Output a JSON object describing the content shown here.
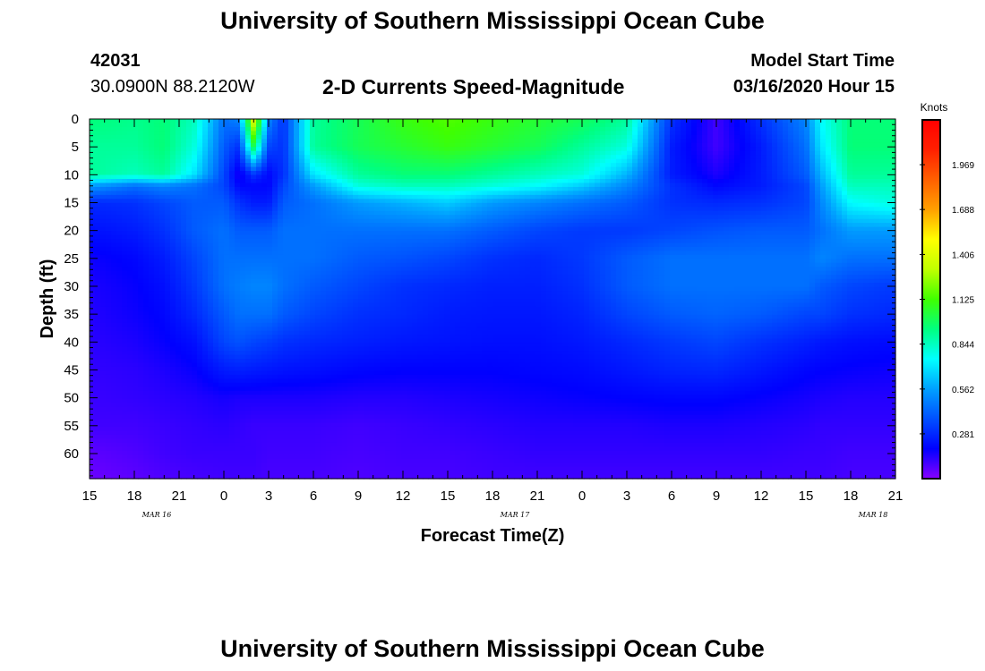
{
  "header": {
    "title_top": "University of Southern Mississippi Ocean Cube",
    "title_bottom": "University of Southern Mississippi Ocean Cube",
    "station_id": "42031",
    "location": "30.0900N 88.2120W",
    "subtitle": "2-D Currents Speed-Magnitude",
    "model_label": "Model Start Time",
    "model_time": "03/16/2020 Hour 15"
  },
  "chart_data": {
    "type": "heatmap",
    "title": "2-D Currents Speed-Magnitude",
    "xlabel": "Forecast Time(Z)",
    "ylabel": "Depth (ft)",
    "x_tick_labels": [
      "15",
      "18",
      "21",
      "0",
      "3",
      "6",
      "9",
      "12",
      "15",
      "18",
      "21",
      "0",
      "3",
      "6",
      "9",
      "12",
      "15",
      "18",
      "21"
    ],
    "x_date_labels": [
      {
        "label": "MAR 16",
        "x": 19.5
      },
      {
        "label": "MAR 17",
        "x": 43.5
      },
      {
        "label": "MAR 18",
        "x": 67.5
      }
    ],
    "xlim": [
      15,
      69
    ],
    "y_ticks": [
      0,
      5,
      10,
      15,
      20,
      25,
      30,
      35,
      40,
      45,
      50,
      55,
      60
    ],
    "ylim": [
      0,
      64.5
    ],
    "y_inverted": true,
    "colorbar": {
      "unit": "Knots",
      "range": [
        0,
        2.25
      ],
      "tick_values": [
        0.281,
        0.562,
        0.844,
        1.125,
        1.406,
        1.688,
        1.969
      ],
      "tick_labels": [
        "0.281",
        "0.562",
        "0.844",
        "1.125",
        "1.406",
        "1.688",
        "1.969"
      ],
      "colors": [
        "#8800ff",
        "#0000ff",
        "#0050ff",
        "#00a0ff",
        "#00ffff",
        "#00ff80",
        "#40ff00",
        "#c0ff00",
        "#ffff00",
        "#ffa000",
        "#ff6000",
        "#ff2000",
        "#ff0000"
      ]
    },
    "grid": {
      "x_hours": [
        15,
        18,
        20,
        22,
        24,
        25,
        26,
        27,
        28,
        30,
        33,
        36,
        39,
        42,
        45,
        48,
        51,
        54,
        57,
        60,
        63,
        64,
        66,
        69
      ],
      "depths": [
        0,
        5,
        10,
        12,
        15,
        20,
        25,
        30,
        35,
        40,
        45,
        50,
        55,
        60,
        64.5
      ],
      "speed_knots": [
        [
          0.95,
          0.92,
          0.95,
          0.85,
          0.45,
          0.5,
          1.4,
          0.5,
          0.3,
          0.9,
          1.0,
          1.1,
          1.15,
          1.1,
          1.05,
          1.0,
          0.9,
          0.3,
          0.1,
          0.3,
          0.5,
          0.75,
          0.95,
          0.95
        ],
        [
          0.9,
          0.9,
          0.95,
          0.8,
          0.4,
          0.3,
          1.0,
          0.35,
          0.3,
          0.9,
          1.0,
          1.05,
          1.1,
          1.05,
          1.0,
          0.9,
          0.8,
          0.25,
          0.1,
          0.25,
          0.45,
          0.7,
          0.95,
          0.95
        ],
        [
          0.9,
          0.85,
          0.9,
          0.7,
          0.35,
          0.15,
          0.3,
          0.2,
          0.3,
          0.7,
          0.9,
          0.95,
          0.95,
          0.9,
          0.85,
          0.8,
          0.6,
          0.25,
          0.15,
          0.25,
          0.4,
          0.6,
          0.9,
          0.9
        ],
        [
          0.55,
          0.45,
          0.5,
          0.45,
          0.35,
          0.2,
          0.2,
          0.2,
          0.35,
          0.55,
          0.8,
          0.85,
          0.85,
          0.8,
          0.75,
          0.65,
          0.5,
          0.3,
          0.2,
          0.25,
          0.35,
          0.55,
          0.85,
          0.85
        ],
        [
          0.28,
          0.3,
          0.35,
          0.4,
          0.4,
          0.3,
          0.25,
          0.25,
          0.4,
          0.45,
          0.55,
          0.6,
          0.65,
          0.55,
          0.5,
          0.45,
          0.4,
          0.3,
          0.28,
          0.3,
          0.35,
          0.5,
          0.75,
          0.8
        ],
        [
          0.22,
          0.25,
          0.3,
          0.4,
          0.45,
          0.4,
          0.4,
          0.4,
          0.45,
          0.45,
          0.45,
          0.45,
          0.45,
          0.4,
          0.35,
          0.32,
          0.32,
          0.35,
          0.38,
          0.4,
          0.4,
          0.45,
          0.55,
          0.55
        ],
        [
          0.17,
          0.2,
          0.25,
          0.35,
          0.45,
          0.45,
          0.45,
          0.45,
          0.45,
          0.45,
          0.4,
          0.38,
          0.35,
          0.3,
          0.28,
          0.32,
          0.4,
          0.45,
          0.45,
          0.45,
          0.45,
          0.5,
          0.45,
          0.45
        ],
        [
          0.15,
          0.18,
          0.22,
          0.32,
          0.45,
          0.48,
          0.5,
          0.5,
          0.45,
          0.4,
          0.35,
          0.3,
          0.28,
          0.26,
          0.26,
          0.3,
          0.4,
          0.45,
          0.45,
          0.45,
          0.45,
          0.4,
          0.35,
          0.32
        ],
        [
          0.14,
          0.17,
          0.2,
          0.28,
          0.4,
          0.45,
          0.45,
          0.45,
          0.4,
          0.35,
          0.3,
          0.28,
          0.25,
          0.24,
          0.24,
          0.27,
          0.35,
          0.4,
          0.42,
          0.4,
          0.35,
          0.35,
          0.3,
          0.28
        ],
        [
          0.13,
          0.15,
          0.18,
          0.22,
          0.35,
          0.38,
          0.35,
          0.33,
          0.3,
          0.28,
          0.26,
          0.24,
          0.23,
          0.22,
          0.22,
          0.24,
          0.28,
          0.32,
          0.35,
          0.3,
          0.26,
          0.24,
          0.22,
          0.21
        ],
        [
          0.12,
          0.13,
          0.15,
          0.18,
          0.25,
          0.26,
          0.25,
          0.24,
          0.23,
          0.22,
          0.2,
          0.19,
          0.19,
          0.19,
          0.2,
          0.21,
          0.24,
          0.27,
          0.28,
          0.24,
          0.2,
          0.19,
          0.18,
          0.17
        ],
        [
          0.11,
          0.12,
          0.13,
          0.14,
          0.16,
          0.15,
          0.15,
          0.15,
          0.15,
          0.15,
          0.14,
          0.14,
          0.15,
          0.16,
          0.17,
          0.18,
          0.19,
          0.2,
          0.2,
          0.18,
          0.16,
          0.15,
          0.14,
          0.14
        ],
        [
          0.1,
          0.1,
          0.11,
          0.12,
          0.13,
          0.12,
          0.11,
          0.11,
          0.11,
          0.11,
          0.1,
          0.11,
          0.12,
          0.13,
          0.14,
          0.14,
          0.14,
          0.15,
          0.15,
          0.14,
          0.13,
          0.12,
          0.12,
          0.12
        ],
        [
          0.06,
          0.08,
          0.1,
          0.11,
          0.11,
          0.11,
          0.11,
          0.1,
          0.1,
          0.1,
          0.09,
          0.1,
          0.1,
          0.11,
          0.12,
          0.12,
          0.12,
          0.12,
          0.12,
          0.12,
          0.11,
          0.11,
          0.1,
          0.1
        ],
        [
          0.04,
          0.06,
          0.08,
          0.09,
          0.1,
          0.1,
          0.1,
          0.09,
          0.09,
          0.09,
          0.08,
          0.09,
          0.09,
          0.1,
          0.1,
          0.1,
          0.1,
          0.1,
          0.1,
          0.1,
          0.1,
          0.1,
          0.09,
          0.09
        ]
      ]
    }
  }
}
